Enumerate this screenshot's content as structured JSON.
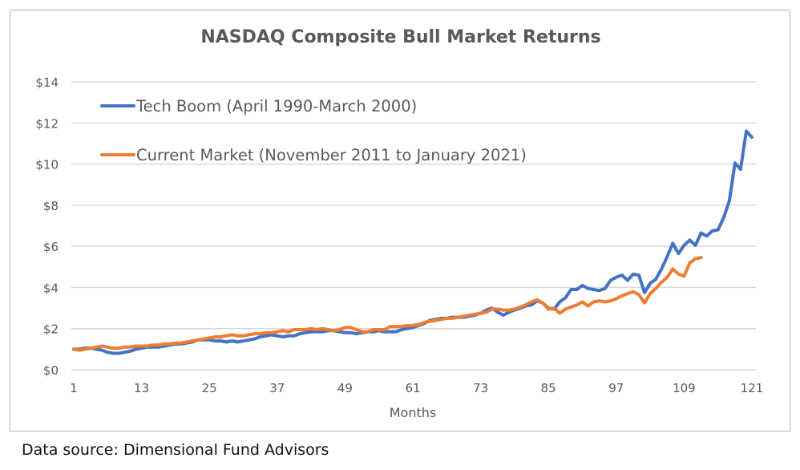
{
  "chart_data": {
    "type": "line",
    "title": "NASDAQ Composite Bull Market Returns",
    "xlabel": "Months",
    "ylabel": "",
    "xlim": [
      1,
      121
    ],
    "ylim": [
      0,
      14
    ],
    "x_ticks": [
      1,
      13,
      25,
      37,
      49,
      61,
      73,
      85,
      97,
      109,
      121
    ],
    "y_ticks": [
      0,
      2,
      4,
      6,
      8,
      10,
      12,
      14
    ],
    "y_tick_labels": [
      "$0",
      "$2",
      "$4",
      "$6",
      "$8",
      "$10",
      "$12",
      "$14"
    ],
    "grid": "horizontal",
    "legend_placement": "top-left",
    "series": [
      {
        "name": "Tech Boom (April 1990-March 2000)",
        "color": "#4472C4",
        "values": [
          1.0,
          1.0,
          1.05,
          1.05,
          1.0,
          0.95,
          0.85,
          0.8,
          0.8,
          0.85,
          0.9,
          1.0,
          1.05,
          1.1,
          1.1,
          1.1,
          1.15,
          1.2,
          1.25,
          1.25,
          1.3,
          1.35,
          1.45,
          1.45,
          1.45,
          1.4,
          1.4,
          1.35,
          1.4,
          1.35,
          1.4,
          1.45,
          1.5,
          1.6,
          1.65,
          1.7,
          1.65,
          1.6,
          1.65,
          1.65,
          1.75,
          1.8,
          1.85,
          1.85,
          1.85,
          1.9,
          1.9,
          1.85,
          1.8,
          1.8,
          1.75,
          1.8,
          1.85,
          1.85,
          1.9,
          1.85,
          1.85,
          1.85,
          1.95,
          2.0,
          2.05,
          2.15,
          2.25,
          2.4,
          2.45,
          2.5,
          2.5,
          2.55,
          2.55,
          2.55,
          2.6,
          2.65,
          2.75,
          2.9,
          3.0,
          2.8,
          2.65,
          2.8,
          2.9,
          3.0,
          3.1,
          3.15,
          3.35,
          3.25,
          3.0,
          2.95,
          3.3,
          3.5,
          3.9,
          3.9,
          4.1,
          3.95,
          3.9,
          3.85,
          3.95,
          4.35,
          4.5,
          4.6,
          4.35,
          4.65,
          4.6,
          3.75,
          4.2,
          4.4,
          4.9,
          5.5,
          6.15,
          5.65,
          6.05,
          6.3,
          6.05,
          6.65,
          6.5,
          6.75,
          6.8,
          7.4,
          8.2,
          10.05,
          9.75,
          11.6,
          11.3
        ]
      },
      {
        "name": "Current Market (November 2011 to January 2021)",
        "color": "#ED7D31",
        "values": [
          1.0,
          0.95,
          1.0,
          1.05,
          1.1,
          1.15,
          1.1,
          1.05,
          1.05,
          1.1,
          1.1,
          1.15,
          1.15,
          1.15,
          1.2,
          1.2,
          1.25,
          1.25,
          1.3,
          1.3,
          1.35,
          1.4,
          1.45,
          1.5,
          1.55,
          1.6,
          1.6,
          1.65,
          1.7,
          1.65,
          1.65,
          1.7,
          1.75,
          1.75,
          1.8,
          1.8,
          1.85,
          1.9,
          1.85,
          1.95,
          1.95,
          1.95,
          2.0,
          1.95,
          2.0,
          1.95,
          1.9,
          1.95,
          2.05,
          2.05,
          1.95,
          1.85,
          1.85,
          1.95,
          1.95,
          1.95,
          2.1,
          2.1,
          2.1,
          2.15,
          2.15,
          2.2,
          2.3,
          2.35,
          2.4,
          2.45,
          2.5,
          2.5,
          2.55,
          2.6,
          2.65,
          2.7,
          2.75,
          2.8,
          2.95,
          2.95,
          2.9,
          2.9,
          2.95,
          3.05,
          3.15,
          3.3,
          3.4,
          3.25,
          2.95,
          3.0,
          2.75,
          2.95,
          3.05,
          3.15,
          3.3,
          3.1,
          3.3,
          3.35,
          3.3,
          3.35,
          3.45,
          3.6,
          3.7,
          3.8,
          3.65,
          3.25,
          3.7,
          3.95,
          4.25,
          4.5,
          4.9,
          4.65,
          4.55,
          5.2,
          5.4,
          5.45
        ]
      }
    ]
  },
  "caption": "Data source: Dimensional Fund Advisors"
}
